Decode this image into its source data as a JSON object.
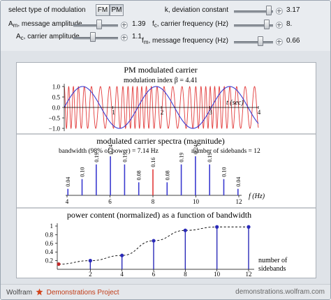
{
  "controls": {
    "modulation_type": {
      "label": "select type of modulation",
      "options": [
        "FM",
        "PM"
      ],
      "selected": "PM"
    },
    "message_amplitude": {
      "label_main": "A",
      "label_sub": "m",
      "label_rest": ", message amplitude",
      "value": "1.39",
      "fraction": 0.57
    },
    "carrier_amplitude": {
      "label_main": "A",
      "label_sub": "c",
      "label_rest": ", carrier amplitude",
      "value": "1.1",
      "fraction": 0.42
    },
    "deviation_constant": {
      "label": "k, deviation constant",
      "value": "3.17",
      "fraction": 0.88
    },
    "carrier_frequency": {
      "label_main": "f",
      "label_sub": "c",
      "label_rest": ", carrier frequency (Hz)",
      "value": "8.",
      "fraction": 0.83
    },
    "message_frequency": {
      "label_main": "f",
      "label_sub": "m",
      "label_rest": ", message frequency (Hz)",
      "value": "0.66",
      "fraction": 0.66
    }
  },
  "plot1": {
    "title": "PM modulated carrier",
    "subtitle": "modulation index β = 4.41",
    "xlabel": "t (sec)",
    "yticks": [
      "1.0",
      "0.5",
      "0.0",
      "−0.5",
      "−1.0"
    ],
    "xticks": [
      "1",
      "2",
      "3",
      "4"
    ]
  },
  "plot2": {
    "title": "modulated carrier spectra (magnitude)",
    "subtitle_left": "bandwidth (98% of power) = 7.14 Hz",
    "subtitle_right": "number of sidebands = 12",
    "xlabel": "f (Hz)",
    "xticks": [
      "4",
      "6",
      "8",
      "10",
      "12"
    ]
  },
  "plot3": {
    "title": "power content (normalized) as a function of bandwidth",
    "xlabel_line1": "number of",
    "xlabel_line2": "sidebands",
    "yticks": [
      "1",
      "0.8",
      "0.6",
      "0.4",
      "0.2"
    ],
    "xticks": [
      "2",
      "4",
      "6",
      "8",
      "10",
      "12"
    ]
  },
  "chart_data": [
    {
      "type": "line",
      "title": "PM modulated carrier",
      "subtitle": "modulation index β = 4.41",
      "xlabel": "t (sec)",
      "xlim": [
        0,
        4
      ],
      "ylim": [
        -1.2,
        1.2
      ],
      "series": [
        {
          "color": "#3a3ad0",
          "kind": "message",
          "frequency": 0.66,
          "amplitude": 1
        },
        {
          "color": "#e23a3a",
          "kind": "carrier",
          "frequency": 8,
          "amplitude": 1
        }
      ]
    },
    {
      "type": "bar",
      "title": "modulated carrier spectra (magnitude)",
      "xlabel": "f (Hz)",
      "xlim": [
        4,
        12
      ],
      "x": [
        4.04,
        4.7,
        5.36,
        6.02,
        6.68,
        7.34,
        8.0,
        8.66,
        9.32,
        9.98,
        10.64,
        11.3,
        11.96
      ],
      "values": [
        0.04,
        0.1,
        0.19,
        0.24,
        0.19,
        0.08,
        0.16,
        0.08,
        0.19,
        0.24,
        0.19,
        0.1,
        0.04
      ],
      "labels": [
        "0.04",
        "0.10",
        "0.19",
        "0.24",
        "0.19",
        "0.08",
        "0.16",
        "0.08",
        "0.19",
        "0.24",
        "0.19",
        "0.10",
        "0.04"
      ],
      "center_color": "#e23a3a",
      "bar_color": "#3a3ad0"
    },
    {
      "type": "scatter",
      "title": "power content (normalized) as a function of bandwidth",
      "xlabel": "number of sidebands",
      "xlim": [
        0,
        12
      ],
      "ylim": [
        0,
        1
      ],
      "x": [
        0,
        2,
        4,
        6,
        8,
        10,
        12
      ],
      "values": [
        0.12,
        0.2,
        0.32,
        0.66,
        0.9,
        0.98,
        0.98
      ]
    }
  ],
  "footer": {
    "brand": "Wolfram",
    "project": "Demonstrations Project",
    "site": "demonstrations.wolfram.com"
  }
}
